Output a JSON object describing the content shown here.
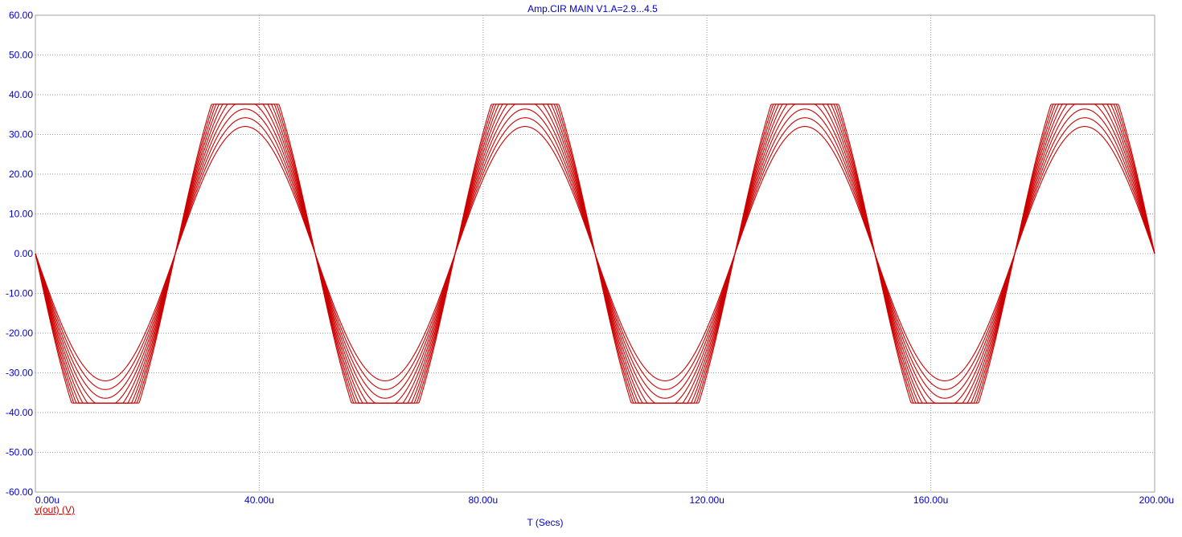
{
  "chart_data": {
    "type": "line",
    "title": "Amp.CIR MAIN V1.A=2.9...4.5",
    "xlabel": "T (Secs)",
    "ylabel": "v(out) (V)",
    "xlim": [
      0,
      0.0002
    ],
    "ylim": [
      -60,
      60
    ],
    "x_ticks": [
      "0.00u",
      "40.00u",
      "80.00u",
      "120.00u",
      "160.00u",
      "200.00u"
    ],
    "y_ticks": [
      "60.00",
      "50.00",
      "40.00",
      "30.00",
      "20.00",
      "10.00",
      "0.00",
      "-10.00",
      "-20.00",
      "-30.00",
      "-40.00",
      "-50.00",
      "-60.00"
    ],
    "grid": true,
    "waveform": {
      "shape": "inverted-sine",
      "frequency_hz": 20000,
      "clip_level_v": 37.6,
      "sweep_parameter": "V1.A",
      "sweep_range": [
        2.9,
        4.5
      ],
      "peak_amplitudes_v": [
        32,
        34.2,
        36.4,
        38.6,
        40.8,
        43,
        45.2,
        47.4,
        49.6,
        51.8
      ]
    },
    "colors": {
      "trace": "#cc0000",
      "axis_text": "#0000cc",
      "ylabel_text": "#cc0000",
      "grid": "#9a9a9a",
      "frame": "#a0a0a0"
    }
  }
}
